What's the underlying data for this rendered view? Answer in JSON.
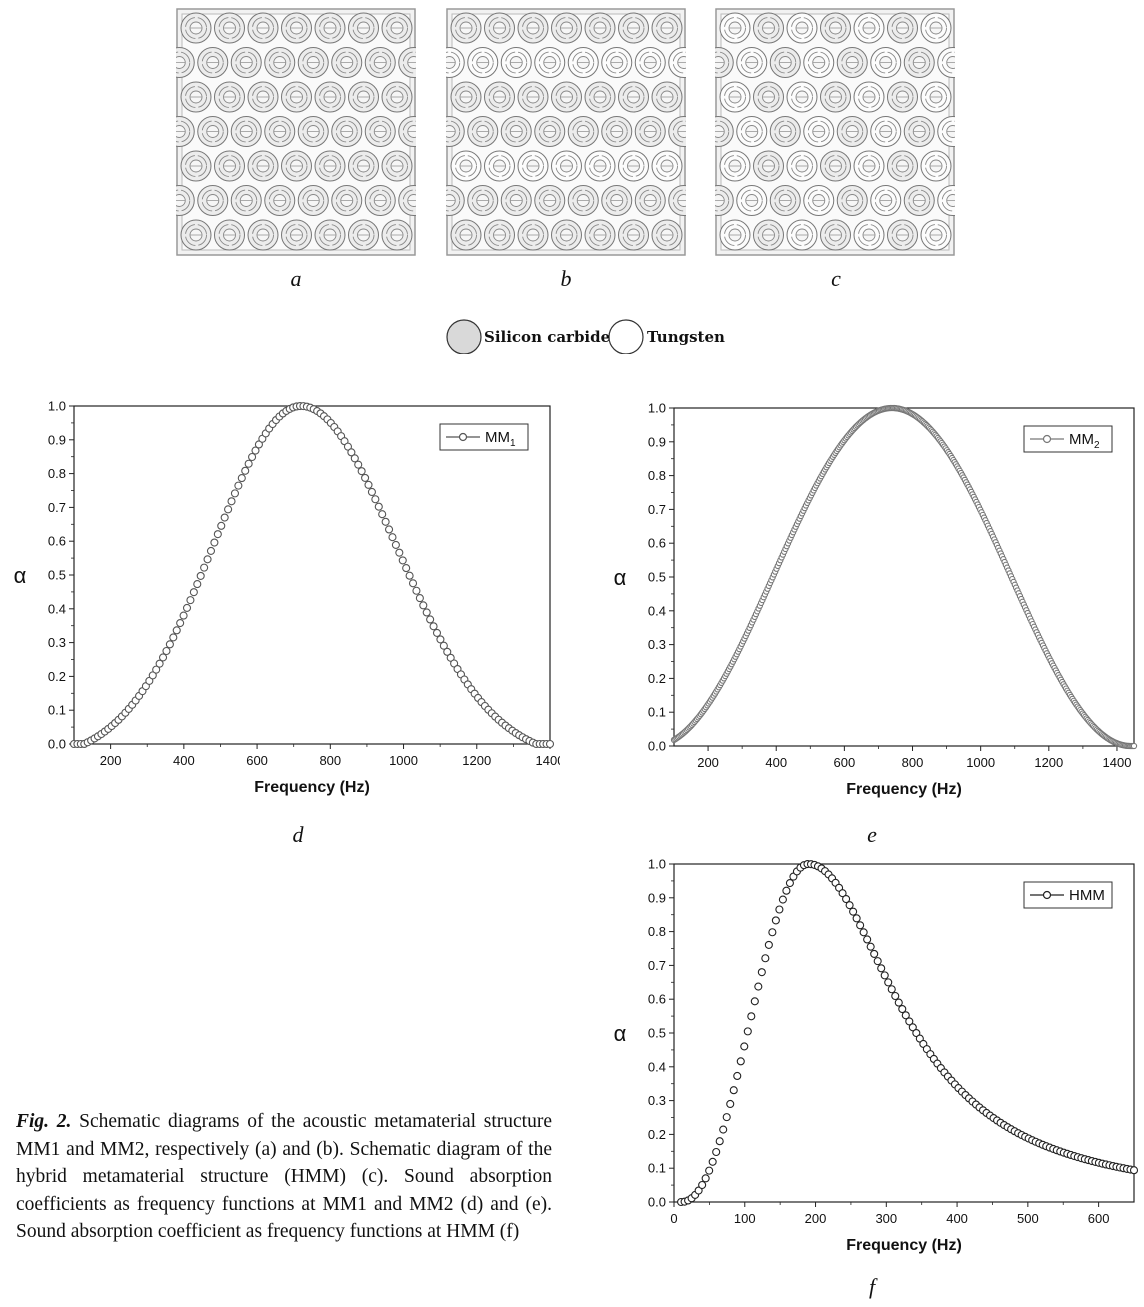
{
  "schematics": [
    {
      "label": "a"
    },
    {
      "label": "b"
    },
    {
      "label": "c"
    }
  ],
  "materials_legend": {
    "items": [
      {
        "name": "Silicon carbide",
        "fill": "#d9d9d9"
      },
      {
        "name": "Tungsten",
        "fill": "#ffffff"
      }
    ]
  },
  "caption": {
    "fig_label": "Fig. 2.",
    "text": " Schematic diagrams of the acoustic metamaterial structure MM1 and MM2, respectively (a) and (b). Schematic diagram of the hybrid metamaterial structure (HMM) (c). Sound absorption coefficients as frequency functions at MM1 and MM2 (d) and (e). Sound absorption coefficient as frequency functions at HMM (f)"
  },
  "chart_data": [
    {
      "panel": "d",
      "type": "scatter",
      "series": [
        {
          "name": "MM",
          "subscript": "1",
          "color": "#555555",
          "marker": "open-circle"
        }
      ],
      "xlabel": "Frequency (Hz)",
      "ylabel": "α",
      "xlim": [
        100,
        1400
      ],
      "ylim": [
        0.0,
        1.0
      ],
      "xticks": [
        200,
        400,
        600,
        800,
        1000,
        1200,
        1400
      ],
      "yticks": [
        0.0,
        0.1,
        0.2,
        0.3,
        0.4,
        0.5,
        0.6,
        0.7,
        0.8,
        0.9,
        1.0
      ],
      "peak": {
        "x": 720,
        "y": 1.0
      },
      "curve_model": {
        "kind": "gauss",
        "x0": 720,
        "sigma_left": 240,
        "sigma_right": 260,
        "baseline": -0.05
      },
      "x_range_points": [
        100,
        1400
      ],
      "point_count": 140,
      "legend_position": "top-right",
      "grid": false
    },
    {
      "panel": "e",
      "type": "scatter",
      "series": [
        {
          "name": "MM",
          "subscript": "2",
          "color": "#777777",
          "marker": "open-circle"
        }
      ],
      "xlabel": "Frequency (Hz)",
      "ylabel": "α",
      "xlim": [
        100,
        1450
      ],
      "ylim": [
        0.0,
        1.0
      ],
      "xticks": [
        200,
        400,
        600,
        800,
        1000,
        1200,
        1400
      ],
      "yticks": [
        0.0,
        0.1,
        0.2,
        0.3,
        0.4,
        0.5,
        0.6,
        0.7,
        0.8,
        0.9,
        1.0
      ],
      "peak": {
        "x": 740,
        "y": 1.0
      },
      "curve_model": {
        "kind": "cosine",
        "x0": 740,
        "halfwidth": 700
      },
      "x_range_points": [
        100,
        1450
      ],
      "point_count": 360,
      "legend_position": "top-right",
      "grid": false
    },
    {
      "panel": "f",
      "type": "scatter",
      "series": [
        {
          "name": "HMM",
          "subscript": "",
          "color": "#222222",
          "marker": "open-circle"
        }
      ],
      "xlabel": "Frequency (Hz)",
      "ylabel": "α",
      "xlim": [
        0,
        650
      ],
      "ylim": [
        0.0,
        1.0
      ],
      "xticks": [
        0,
        100,
        200,
        300,
        400,
        500,
        600
      ],
      "yticks": [
        0.0,
        0.1,
        0.2,
        0.3,
        0.4,
        0.5,
        0.6,
        0.7,
        0.8,
        0.9,
        1.0
      ],
      "peak": {
        "x": 190,
        "y": 1.0
      },
      "curve_model": {
        "kind": "asym",
        "x0": 190,
        "start": 10,
        "tail_value_at_650": 0.28
      },
      "x_range_points": [
        10,
        650
      ],
      "point_count": 130,
      "legend_position": "top-right",
      "grid": false
    }
  ]
}
